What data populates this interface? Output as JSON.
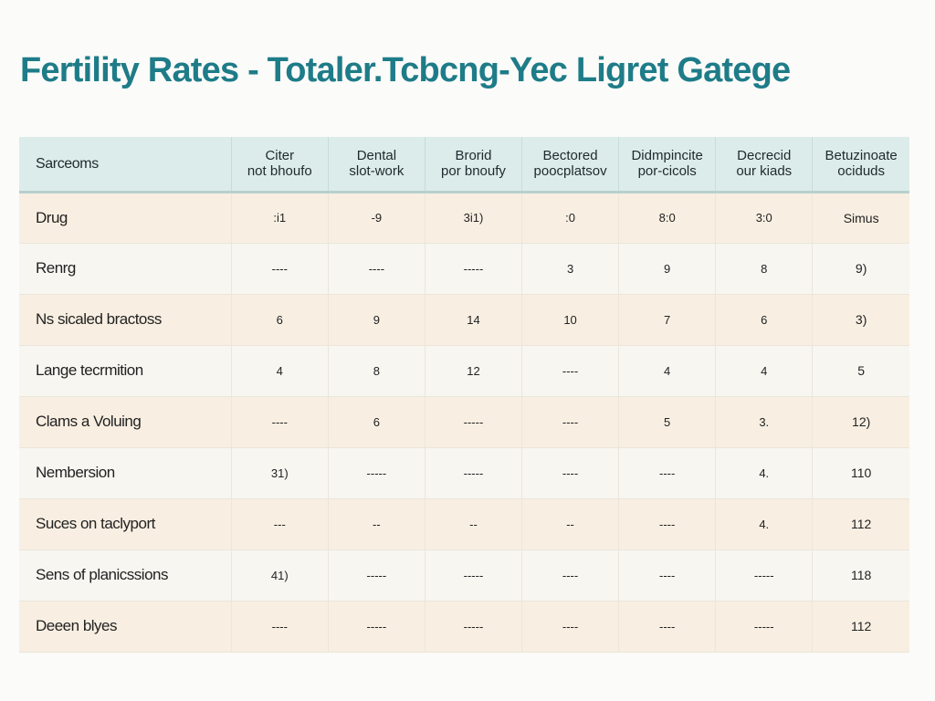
{
  "title": "Fertility Rates - Totaler.Tcbcng-Yec Ligret Gatege",
  "chart_data": {
    "type": "table",
    "columns": [
      "Sarceoms",
      "Citer\nnot bhoufo",
      "Dental\nslot-work",
      "Brorid\npor bnoufy",
      "Bectored\npoocplatsov",
      "Didmpincite\npor-cicols",
      "Decrecid\nour kiads",
      "Betuzinoate\nociduds"
    ],
    "rows": [
      [
        "Drug",
        ":i1",
        "-9",
        "3i1)",
        ":0",
        "8:0",
        "3:0",
        "Simus"
      ],
      [
        "Renrg",
        "----",
        "----",
        "-----",
        "3",
        "9",
        "8",
        "9)"
      ],
      [
        "Ns sicaled bractoss",
        "6",
        "9",
        "14",
        "10",
        "7",
        "6",
        "3)"
      ],
      [
        "Lange tecrmition",
        "4",
        "8",
        "12",
        "----",
        "4",
        "4",
        "5"
      ],
      [
        "Clams a Voluing",
        "----",
        "6",
        "-----",
        "----",
        "5",
        "3.",
        "12)"
      ],
      [
        "Nembersion",
        "31)",
        "-----",
        "-----",
        "----",
        "----",
        "4.",
        "110"
      ],
      [
        "Suces on taclyport",
        "---",
        "--",
        "--",
        "--",
        "----",
        "4.",
        "112"
      ],
      [
        "Sens of planicssions",
        "41)",
        "-----",
        "-----",
        "----",
        "----",
        "-----",
        "118"
      ],
      [
        "Deeen blyes",
        "----",
        "-----",
        "-----",
        "----",
        "----",
        "-----",
        "112"
      ]
    ]
  }
}
